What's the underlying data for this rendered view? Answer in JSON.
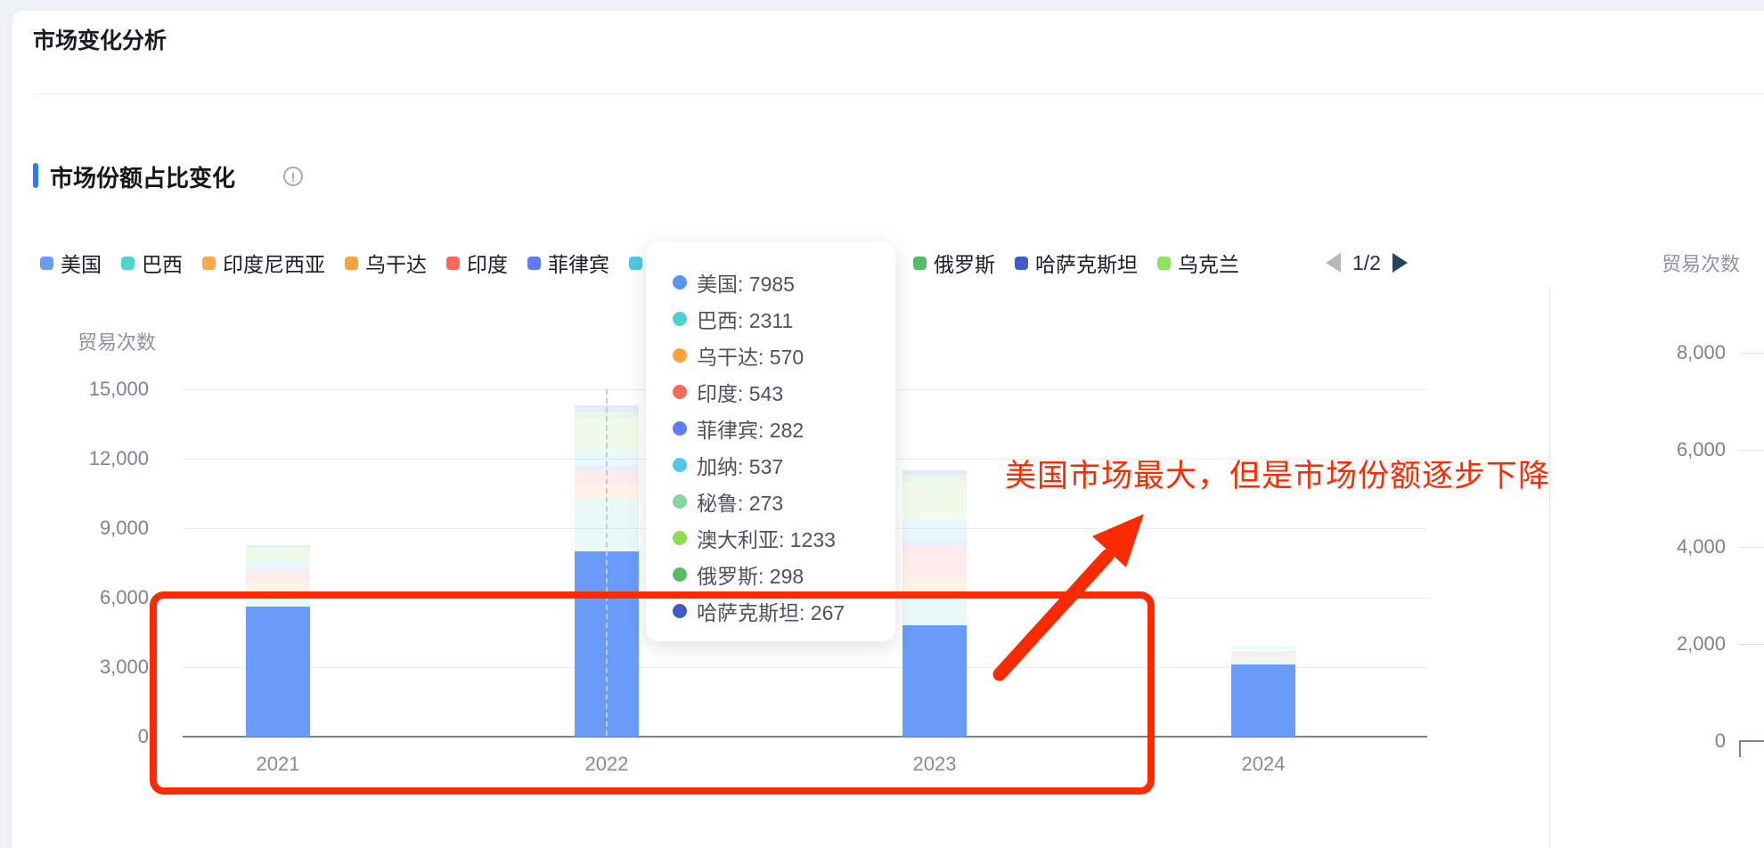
{
  "page": {
    "title": "市场变化分析"
  },
  "section": {
    "title": "市场份额占比变化",
    "info_icon": "!"
  },
  "legend": {
    "items": [
      {
        "label": "美国",
        "color": "#689CF8"
      },
      {
        "label": "巴西",
        "color": "#52D3CB"
      },
      {
        "label": "印度尼西亚",
        "color": "#F9A84B"
      },
      {
        "label": "乌干达",
        "color": "#FAA03E"
      },
      {
        "label": "印度",
        "color": "#F8695A"
      },
      {
        "label": "菲律宾",
        "color": "#5F7BF7"
      },
      {
        "label": "加纳",
        "color": "#4FC8E6"
      },
      {
        "label": "秘鲁",
        "color": "#83D79F"
      },
      {
        "label": "澳大利亚",
        "color": "#8EDC52"
      },
      {
        "label": "俄罗斯",
        "color": "#55BD68"
      },
      {
        "label": "哈萨克斯坦",
        "color": "#4059CB"
      },
      {
        "label": "乌克兰",
        "color": "#90E263"
      }
    ],
    "pagination": {
      "label": "1/2"
    }
  },
  "chart_data": {
    "type": "bar",
    "stacked": true,
    "title": "市场份额占比变化",
    "categories": [
      "2021",
      "2022",
      "2023",
      "2024"
    ],
    "ylabel": "贸易次数",
    "ylim": [
      0,
      15000
    ],
    "y_tick_values": [
      0,
      3000,
      6000,
      9000,
      12000,
      15000
    ],
    "y_tick_labels": [
      "0",
      "3,000",
      "6,000",
      "9,000",
      "12,000",
      "15,000"
    ],
    "grid": true,
    "legend_position": "top",
    "hovered_category": "2022",
    "series": [
      {
        "name": "美国",
        "color": "#689CF8",
        "values": [
          5600,
          7985,
          4800,
          3100
        ]
      },
      {
        "name": "巴西",
        "color": "#52D3CB",
        "values": [
          700,
          2311,
          1500,
          250
        ]
      },
      {
        "name": "印度尼西亚",
        "color": "#F9A84B",
        "values": [
          0,
          0,
          0,
          0
        ]
      },
      {
        "name": "乌干达",
        "color": "#FAA03E",
        "values": [
          380,
          570,
          600,
          100
        ]
      },
      {
        "name": "印度",
        "color": "#F8695A",
        "values": [
          450,
          543,
          1300,
          150
        ]
      },
      {
        "name": "菲律宾",
        "color": "#5F7BF7",
        "values": [
          150,
          282,
          300,
          50
        ]
      },
      {
        "name": "加纳",
        "color": "#4FC8E6",
        "values": [
          280,
          537,
          800,
          100
        ]
      },
      {
        "name": "秘鲁",
        "color": "#83D79F",
        "values": [
          140,
          273,
          300,
          50
        ]
      },
      {
        "name": "澳大利亚",
        "color": "#8EDC52",
        "values": [
          420,
          1233,
          1400,
          100
        ]
      },
      {
        "name": "俄罗斯",
        "color": "#55BD68",
        "values": [
          80,
          298,
          300,
          0
        ]
      },
      {
        "name": "哈萨克斯坦",
        "color": "#4059CB",
        "values": [
          70,
          267,
          200,
          0
        ]
      },
      {
        "name": "乌克兰",
        "color": "#90E263",
        "values": [
          0,
          0,
          0,
          0
        ]
      }
    ]
  },
  "tooltip": {
    "rows": [
      {
        "label": "美国",
        "value": "7985",
        "color": "#5A93F7"
      },
      {
        "label": "巴西",
        "value": "2311",
        "color": "#4ED0CE"
      },
      {
        "label": "乌干达",
        "value": "570",
        "color": "#FAA23E"
      },
      {
        "label": "印度",
        "value": "543",
        "color": "#F8695A"
      },
      {
        "label": "菲律宾",
        "value": "282",
        "color": "#5F7BF7"
      },
      {
        "label": "加纳",
        "value": "537",
        "color": "#4FC8E6"
      },
      {
        "label": "秘鲁",
        "value": "273",
        "color": "#83D79F"
      },
      {
        "label": "澳大利亚",
        "value": "1233",
        "color": "#8EDC52"
      },
      {
        "label": "俄罗斯",
        "value": "298",
        "color": "#55BD68"
      },
      {
        "label": "哈萨克斯坦",
        "value": "267",
        "color": "#4059CB"
      }
    ]
  },
  "right_chart": {
    "ylabel": "贸易次数",
    "y_tick_values": [
      0,
      2000,
      4000,
      6000,
      8000
    ],
    "y_tick_labels": [
      "0",
      "2,000",
      "4,000",
      "6,000",
      "8,000"
    ]
  },
  "annotation": {
    "text": "美国市场最大，但是市场份额逐步下降",
    "color": "#fb2b01"
  }
}
